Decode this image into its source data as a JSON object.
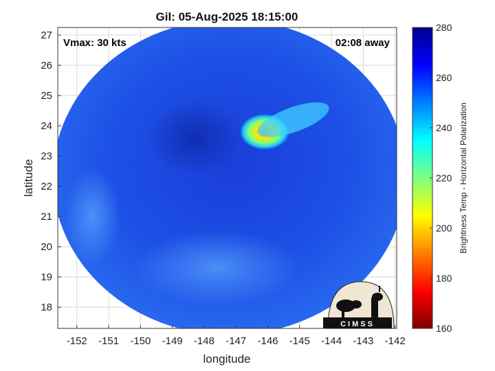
{
  "chart_data": {
    "type": "heatmap",
    "title": "Gil: 05-Aug-2025 18:15:00",
    "xlabel": "longitude",
    "ylabel": "latitude",
    "xlim": [
      -152.6,
      -141.95
    ],
    "ylim": [
      17.3,
      27.25
    ],
    "xticks": [
      -152,
      -151,
      -150,
      -149,
      -148,
      -147,
      -146,
      -145,
      -144,
      -143,
      -142
    ],
    "yticks": [
      18,
      19,
      20,
      21,
      22,
      23,
      24,
      25,
      26,
      27
    ],
    "grid": true,
    "annotations": {
      "vmax": "Vmax: 30 kts",
      "away": "02:08 away"
    },
    "swath": {
      "center_lon": -147.2,
      "center_lat": 22.3,
      "radius_deg": 5.55
    },
    "features": [
      {
        "name": "cold-cloud-core",
        "lon": -146.1,
        "lat": 23.8,
        "value": 197
      },
      {
        "name": "cloud-band",
        "lon": -145.2,
        "lat": 24.2,
        "value": 235
      }
    ],
    "background_value": 262,
    "colorbar": {
      "label": "Brightness Temp - Horizontal Polarization",
      "min": 160,
      "max": 280,
      "ticks": [
        160,
        180,
        200,
        220,
        240,
        260,
        280
      ],
      "colormap": "jet"
    }
  },
  "logo": {
    "text": "CIMSS"
  }
}
